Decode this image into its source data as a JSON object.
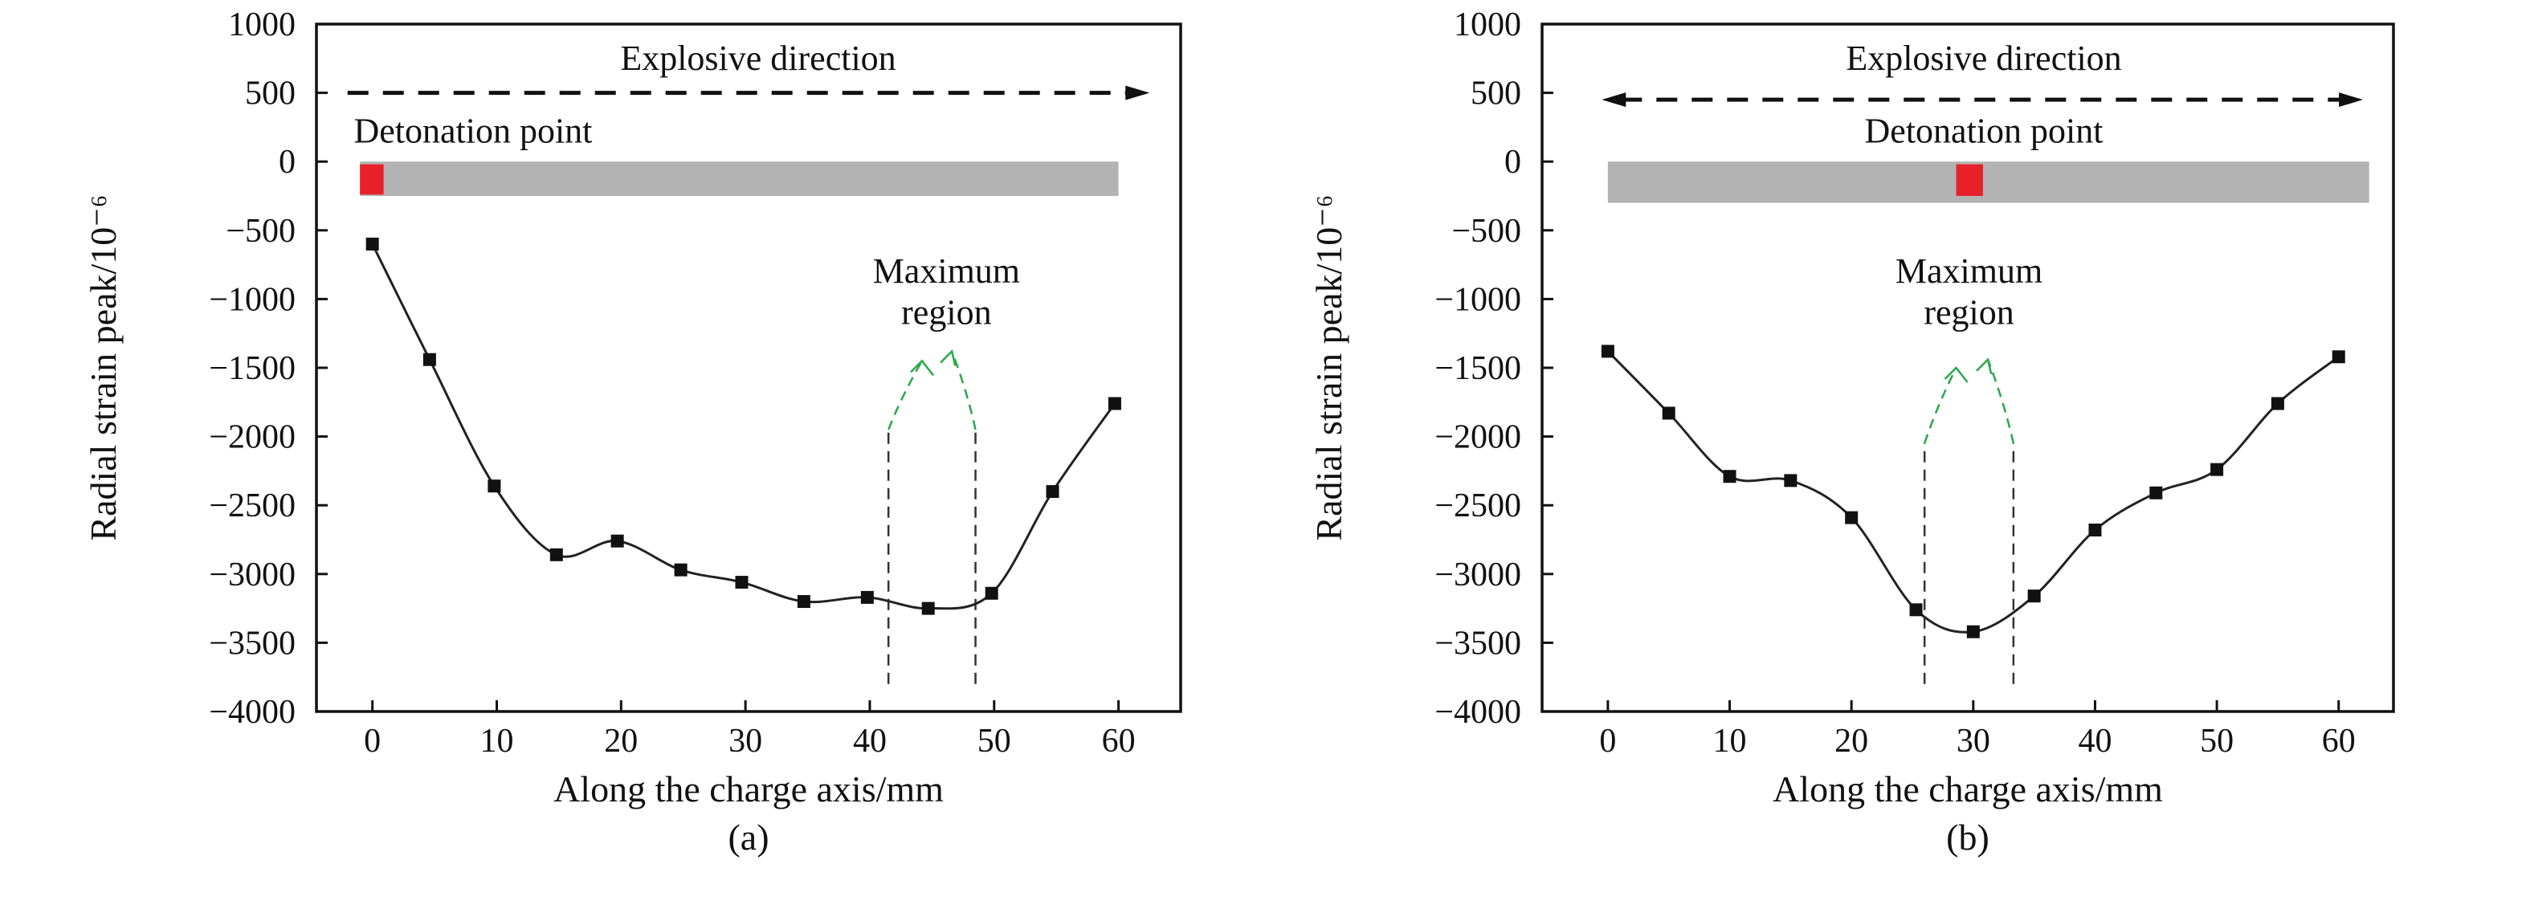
{
  "chart_data": [
    {
      "type": "line",
      "panel_label": "(a)",
      "xlabel": "Along the charge axis/mm",
      "ylabel": "Radial strain peak/10⁻⁶",
      "xlim": [
        -4.5,
        65
      ],
      "ylim": [
        -4000,
        1000
      ],
      "xticks": [
        0,
        10,
        20,
        30,
        40,
        50,
        60
      ],
      "yticks": [
        1000,
        500,
        0,
        -500,
        -1000,
        -1500,
        -2000,
        -2500,
        -3000,
        -3500,
        -4000
      ],
      "grid": false,
      "marker": "square",
      "x": [
        0,
        4.6,
        9.8,
        14.8,
        19.7,
        24.8,
        29.7,
        34.7,
        39.8,
        44.7,
        49.8,
        54.7,
        59.7
      ],
      "y": [
        -600,
        -1440,
        -2360,
        -2860,
        -2760,
        -2970,
        -3060,
        -3200,
        -3170,
        -3250,
        -3140,
        -2400,
        -1760
      ],
      "annotations": {
        "direction_text": "Explosive direction",
        "direction_arrow": {
          "from": -2,
          "to": 62.5,
          "y": 500,
          "heads": "right"
        },
        "detonation_text": "Detonation point",
        "charge_bar": {
          "x": [
            -1,
            60
          ],
          "y": [
            0,
            -250
          ],
          "color": "#b3b3b3"
        },
        "detonation_point": {
          "x": [
            -1,
            0.9
          ],
          "y": [
            -20,
            -240
          ],
          "color": "#e8202a"
        },
        "maximum_text": [
          "Maximum",
          "region"
        ],
        "maximum_lines": [
          41.5,
          48.5
        ],
        "line_range": [
          -3800,
          -1950
        ],
        "arrow_tips": [
          [
            44.2,
            -1450
          ],
          [
            46.6,
            -1380
          ]
        ],
        "arrow_color": "#2aa84a"
      }
    },
    {
      "type": "line",
      "panel_label": "(b)",
      "xlabel": "Along the charge axis/mm",
      "ylabel": "Radial strain peak/10⁻⁶",
      "xlim": [
        -5.4,
        64.5
      ],
      "ylim": [
        -4000,
        1000
      ],
      "xticks": [
        0,
        10,
        20,
        30,
        40,
        50,
        60
      ],
      "yticks": [
        1000,
        500,
        0,
        -500,
        -1000,
        -1500,
        -2000,
        -2500,
        -3000,
        -3500,
        -4000
      ],
      "grid": false,
      "marker": "square",
      "x": [
        0,
        5,
        10,
        15,
        20,
        25.3,
        30,
        35,
        40,
        45,
        50,
        55,
        60
      ],
      "y": [
        -1380,
        -1830,
        -2290,
        -2320,
        -2590,
        -3260,
        -3420,
        -3160,
        -2680,
        -2410,
        -2240,
        -1760,
        -1420
      ],
      "annotations": {
        "direction_text": "Explosive direction",
        "direction_arrow": {
          "from": -0.5,
          "to": 62,
          "y": 450,
          "heads": "both"
        },
        "detonation_text": "Detonation point",
        "charge_bar": {
          "x": [
            0,
            62.5
          ],
          "y": [
            0,
            -300
          ],
          "color": "#b3b3b3"
        },
        "detonation_point": {
          "x": [
            28.6,
            30.8
          ],
          "y": [
            -20,
            -250
          ],
          "color": "#e8202a"
        },
        "maximum_text": [
          "Maximum",
          "region"
        ],
        "maximum_lines": [
          26,
          33.3
        ],
        "line_range": [
          -3800,
          -2050
        ],
        "arrow_tips": [
          [
            28.6,
            -1500
          ],
          [
            31.2,
            -1440
          ]
        ],
        "arrow_color": "#2aa84a"
      }
    }
  ]
}
